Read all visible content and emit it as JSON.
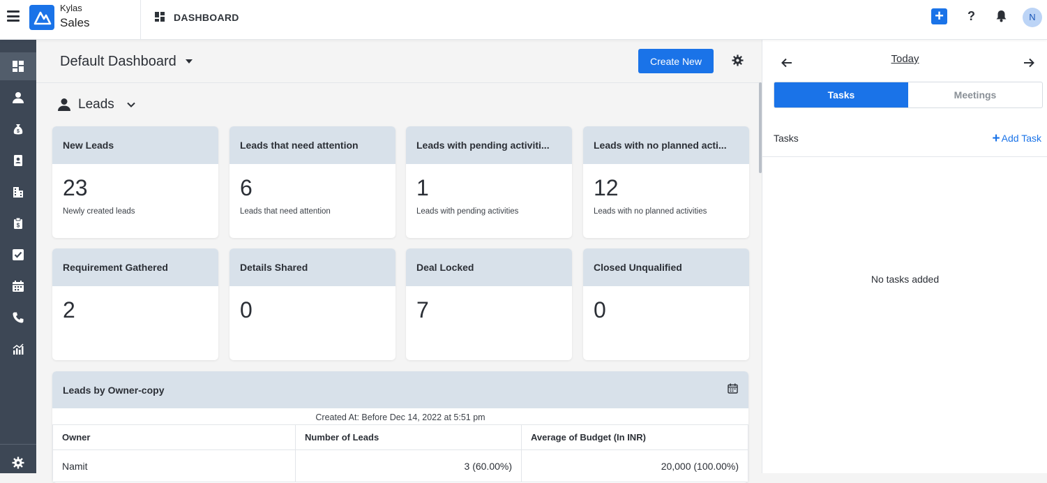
{
  "app": {
    "brand_top": "Kylas",
    "brand_main": "Sales",
    "page_title": "DASHBOARD",
    "avatar_initial": "N",
    "help_glyph": "?"
  },
  "sidebar": {
    "items": [
      {
        "icon": "dashboard-icon",
        "active": true
      },
      {
        "icon": "person-icon"
      },
      {
        "icon": "money-bag-icon"
      },
      {
        "icon": "contact-card-icon"
      },
      {
        "icon": "building-icon"
      },
      {
        "icon": "clipboard-dollar-icon"
      },
      {
        "icon": "checkbox-icon"
      },
      {
        "icon": "calendar-icon"
      },
      {
        "icon": "phone-icon"
      },
      {
        "icon": "report-chart-icon"
      }
    ],
    "bottom_icon": "gear-icon"
  },
  "dashboard": {
    "name": "Default Dashboard",
    "create_label": "Create New",
    "section_title": "Leads",
    "cards": [
      {
        "title": "New Leads",
        "value": "23",
        "sub": "Newly created leads"
      },
      {
        "title": "Leads that need attention",
        "value": "6",
        "sub": "Leads that need attention"
      },
      {
        "title": "Leads with pending activiti...",
        "value": "1",
        "sub": "Leads with pending activities"
      },
      {
        "title": "Leads with no planned acti...",
        "value": "12",
        "sub": "Leads with no planned activities"
      },
      {
        "title": "Requirement Gathered",
        "value": "2",
        "sub": ""
      },
      {
        "title": "Details Shared",
        "value": "0",
        "sub": ""
      },
      {
        "title": "Deal Locked",
        "value": "7",
        "sub": ""
      },
      {
        "title": "Closed Unqualified",
        "value": "0",
        "sub": ""
      }
    ],
    "report": {
      "title": "Leads by Owner-copy",
      "filter": "Created At: Before Dec 14, 2022 at 5:51 pm",
      "columns": [
        "Owner",
        "Number of Leads",
        "Average of Budget (In INR)"
      ],
      "rows": [
        [
          "Namit",
          "3 (60.00%)",
          "20,000 (100.00%)"
        ]
      ]
    }
  },
  "right_panel": {
    "date_label": "Today",
    "tabs": [
      "Tasks",
      "Meetings"
    ],
    "tasks_label": "Tasks",
    "add_task_label": "Add Task",
    "empty_text": "No tasks added"
  },
  "colors": {
    "accent": "#1a73e8",
    "sidebar": "#3d4755",
    "card_header": "#d8e1ea"
  }
}
